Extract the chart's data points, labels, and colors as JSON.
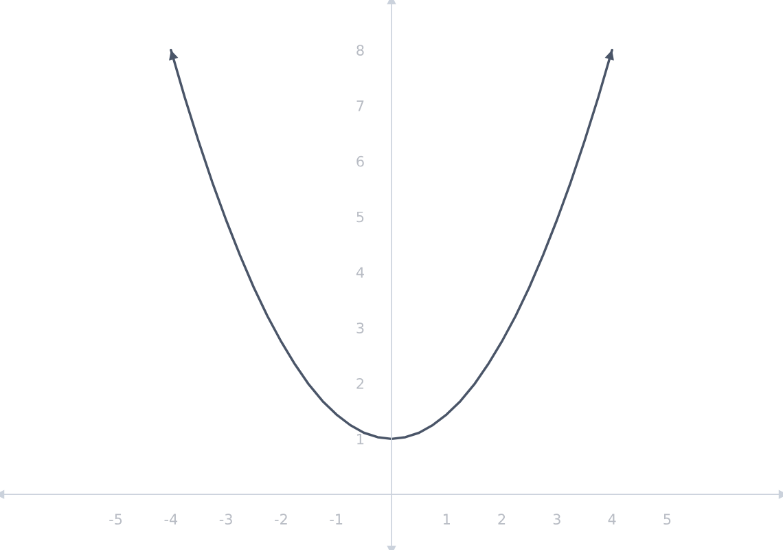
{
  "chart_data": {
    "type": "line",
    "x": [
      -4,
      -3.75,
      -3.5,
      -3.25,
      -3,
      -2.75,
      -2.5,
      -2.25,
      -2,
      -1.75,
      -1.5,
      -1.25,
      -1,
      -0.75,
      -0.5,
      -0.25,
      0,
      0.25,
      0.5,
      0.75,
      1,
      1.25,
      1.5,
      1.75,
      2,
      2.25,
      2.5,
      2.75,
      3,
      3.25,
      3.5,
      3.75,
      4
    ],
    "series": [
      {
        "color": "#4a5568",
        "values": [
          8,
          7.15,
          6.36,
          5.62,
          4.94,
          4.31,
          3.73,
          3.21,
          2.75,
          2.34,
          1.98,
          1.68,
          1.44,
          1.25,
          1.11,
          1.03,
          1.0,
          1.03,
          1.11,
          1.25,
          1.44,
          1.68,
          1.98,
          2.34,
          2.75,
          3.21,
          3.73,
          4.31,
          4.94,
          5.62,
          6.36,
          7.15,
          8
        ]
      }
    ],
    "xlim": [
      -7.1,
      7.1
    ],
    "ylim": [
      -1,
      8.9
    ],
    "xticks": [
      -5,
      -4,
      -3,
      -2,
      -1,
      1,
      2,
      3,
      4,
      5
    ],
    "yticks": [
      1,
      2,
      3,
      4,
      5,
      6,
      7,
      8
    ],
    "grid": false,
    "marker": "none",
    "line_style": "solid"
  }
}
